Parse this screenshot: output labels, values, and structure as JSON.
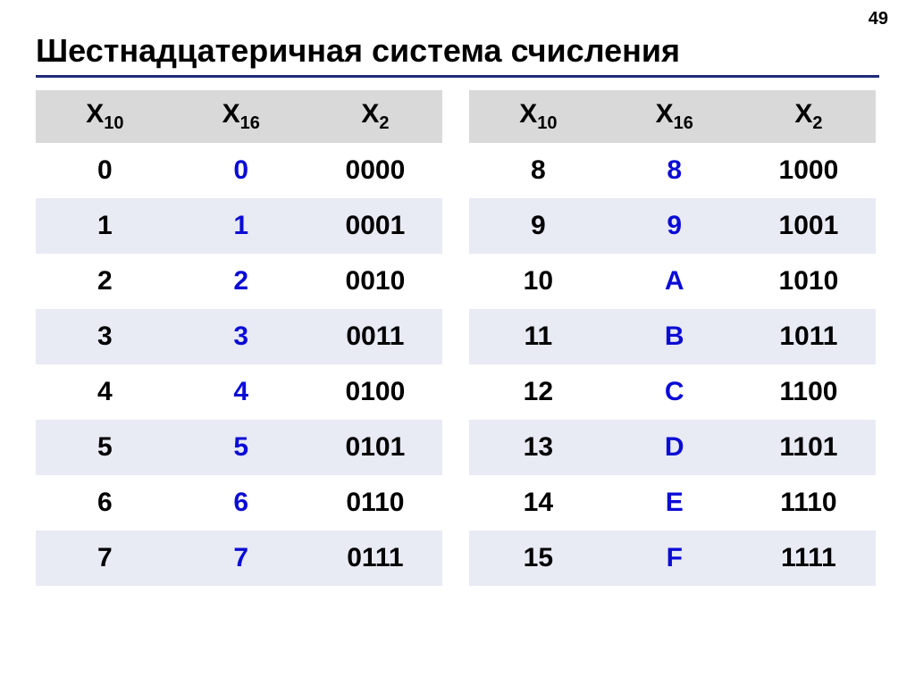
{
  "page_number": "49",
  "title": "Шестнадцатеричная система счисления",
  "colors": {
    "background": "#ffffff",
    "text": "#000000",
    "hex_digit": "#0b0bd6",
    "rule": "#1e2a7a",
    "header_bg": "#d9d9d9",
    "row_alt_bg": "#e8eaf4"
  },
  "fonts": {
    "title_size_pt": 36,
    "header_size_pt": 30,
    "cell_size_pt": 30,
    "sub_size_pt": 20,
    "weight": "bold"
  },
  "headers": {
    "x": "X",
    "sub10": "10",
    "sub16": "16",
    "sub2": "2"
  },
  "left_rows": [
    {
      "dec": "0",
      "hex": "0",
      "bin": "0000"
    },
    {
      "dec": "1",
      "hex": "1",
      "bin": "0001"
    },
    {
      "dec": "2",
      "hex": "2",
      "bin": "0010"
    },
    {
      "dec": "3",
      "hex": "3",
      "bin": "0011"
    },
    {
      "dec": "4",
      "hex": "4",
      "bin": "0100"
    },
    {
      "dec": "5",
      "hex": "5",
      "bin": "0101"
    },
    {
      "dec": "6",
      "hex": "6",
      "bin": "0110"
    },
    {
      "dec": "7",
      "hex": "7",
      "bin": "0111"
    }
  ],
  "right_rows": [
    {
      "dec": "8",
      "hex": "8",
      "bin": "1000"
    },
    {
      "dec": "9",
      "hex": "9",
      "bin": "1001"
    },
    {
      "dec": "10",
      "hex": "A",
      "bin": "1010"
    },
    {
      "dec": "11",
      "hex": "B",
      "bin": "1011"
    },
    {
      "dec": "12",
      "hex": "C",
      "bin": "1100"
    },
    {
      "dec": "13",
      "hex": "D",
      "bin": "1101"
    },
    {
      "dec": "14",
      "hex": "E",
      "bin": "1110"
    },
    {
      "dec": "15",
      "hex": "F",
      "bin": "1111"
    }
  ]
}
